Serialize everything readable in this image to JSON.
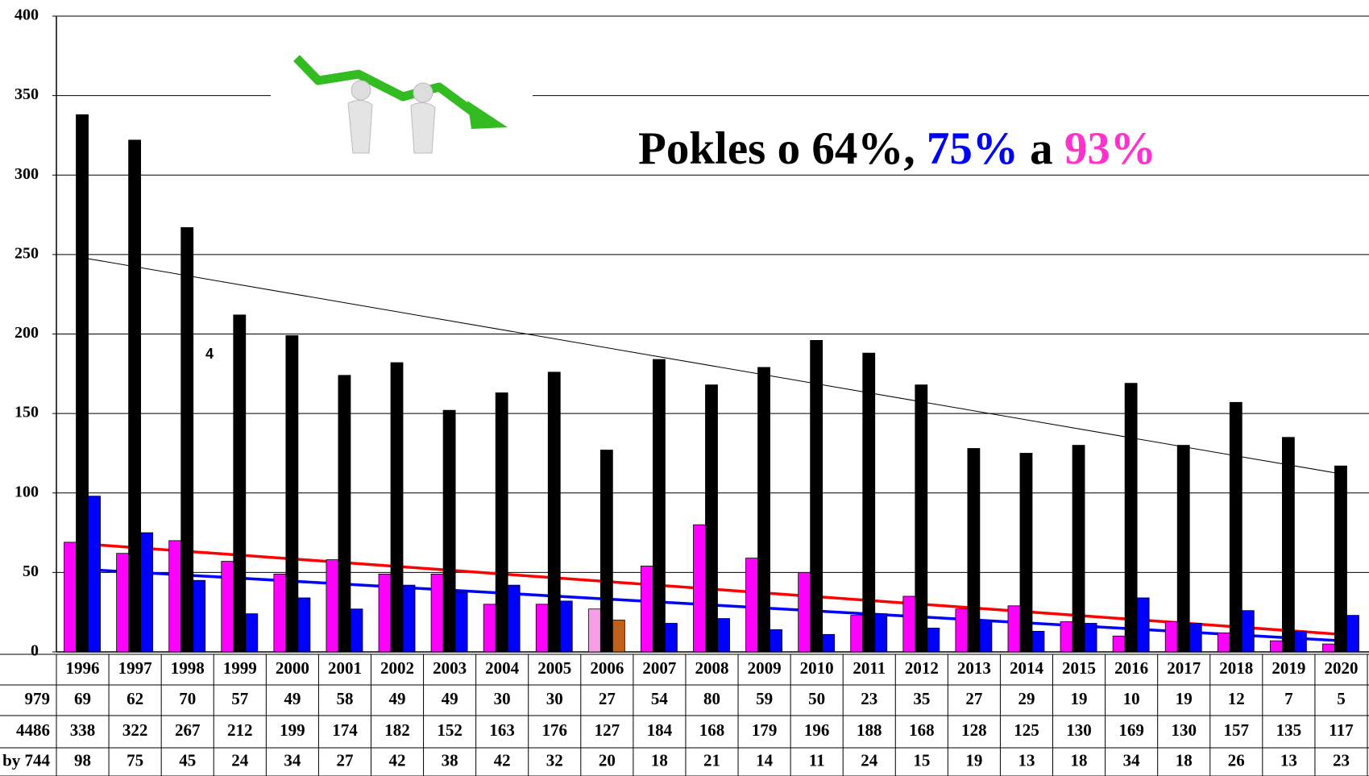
{
  "chart_data": {
    "type": "bar",
    "title_parts": [
      {
        "text": "Pokles o 64%, ",
        "color": "#000000"
      },
      {
        "text": "75%",
        "color": "#0000ff"
      },
      {
        "text": " a ",
        "color": "#000000"
      },
      {
        "text": "93%",
        "color": "#ff33cc"
      }
    ],
    "annotation": "4",
    "categories": [
      "1996",
      "1997",
      "1998",
      "1999",
      "2000",
      "2001",
      "2002",
      "2003",
      "2004",
      "2005",
      "2006",
      "2007",
      "2008",
      "2009",
      "2010",
      "2011",
      "2012",
      "2013",
      "2014",
      "2015",
      "2016",
      "2017",
      "2018",
      "2019",
      "2020"
    ],
    "series": [
      {
        "name": "979",
        "color": "#ff00ff",
        "colors": [
          "#ff00ff",
          "#ff00ff",
          "#ff00ff",
          "#ff00ff",
          "#ff00ff",
          "#ff00ff",
          "#ff00ff",
          "#ff00ff",
          "#ff00ff",
          "#ff00ff",
          "#f5a0e6",
          "#ff00ff",
          "#ff00ff",
          "#ff00ff",
          "#ff00ff",
          "#ff00ff",
          "#ff00ff",
          "#ff00ff",
          "#ff00ff",
          "#ff00ff",
          "#ff00ff",
          "#ff00ff",
          "#ff00ff",
          "#ff00ff",
          "#ff00ff"
        ],
        "values": [
          69,
          62,
          70,
          57,
          49,
          58,
          49,
          49,
          30,
          30,
          27,
          54,
          80,
          59,
          50,
          23,
          35,
          27,
          29,
          19,
          10,
          19,
          12,
          7,
          5
        ]
      },
      {
        "name": "4486",
        "color": "#000000",
        "values": [
          338,
          322,
          267,
          212,
          199,
          174,
          182,
          152,
          163,
          176,
          127,
          184,
          168,
          179,
          196,
          188,
          168,
          128,
          125,
          130,
          169,
          130,
          157,
          135,
          117
        ]
      },
      {
        "name": "by 744",
        "color": "#0000ff",
        "colors": [
          "#0000ff",
          "#0000ff",
          "#0000ff",
          "#0000ff",
          "#0000ff",
          "#0000ff",
          "#0000ff",
          "#0000ff",
          "#0000ff",
          "#0000ff",
          "#c0601a",
          "#0000ff",
          "#0000ff",
          "#0000ff",
          "#0000ff",
          "#0000ff",
          "#0000ff",
          "#0000ff",
          "#0000ff",
          "#0000ff",
          "#0000ff",
          "#0000ff",
          "#0000ff",
          "#0000ff",
          "#0000ff"
        ],
        "values": [
          98,
          75,
          45,
          24,
          34,
          27,
          42,
          38,
          42,
          32,
          20,
          18,
          21,
          14,
          11,
          24,
          15,
          19,
          13,
          18,
          34,
          18,
          26,
          13,
          23
        ]
      }
    ],
    "trendlines": [
      {
        "color": "#000000",
        "start": 248,
        "end": 112
      },
      {
        "color": "#ff0000",
        "start": 68,
        "end": 11
      },
      {
        "color": "#0000ff",
        "start": 52,
        "end": 7
      }
    ],
    "ylim": [
      0,
      400
    ],
    "yticks": [
      0,
      50,
      100,
      150,
      200,
      250,
      300,
      350,
      400
    ],
    "grid": true
  }
}
